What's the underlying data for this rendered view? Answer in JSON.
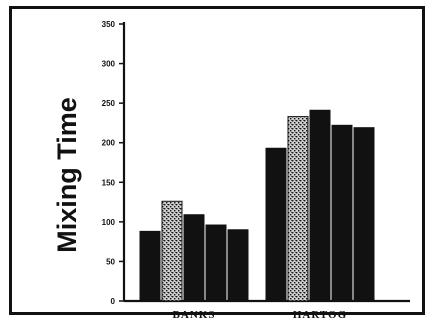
{
  "chart_data": {
    "type": "bar",
    "categories": [
      "BANKS",
      "HARTOG"
    ],
    "series": [
      {
        "values": [
          88,
          193
        ],
        "fill": "#111111"
      },
      {
        "values": [
          126,
          233
        ],
        "fill": "pattern"
      },
      {
        "values": [
          109,
          241
        ],
        "fill": "#111111"
      },
      {
        "values": [
          96,
          222
        ],
        "fill": "#111111"
      },
      {
        "values": [
          90,
          219
        ],
        "fill": "#111111"
      }
    ],
    "ylabel": "Mixing Time",
    "xlabel": "",
    "ylim": [
      0,
      350
    ],
    "yticks": [
      0,
      50,
      100,
      150,
      200,
      250,
      300,
      350
    ],
    "grid": false,
    "colors": {
      "bar": "#111111",
      "axis": "#111111",
      "background": "#ffffff"
    }
  }
}
